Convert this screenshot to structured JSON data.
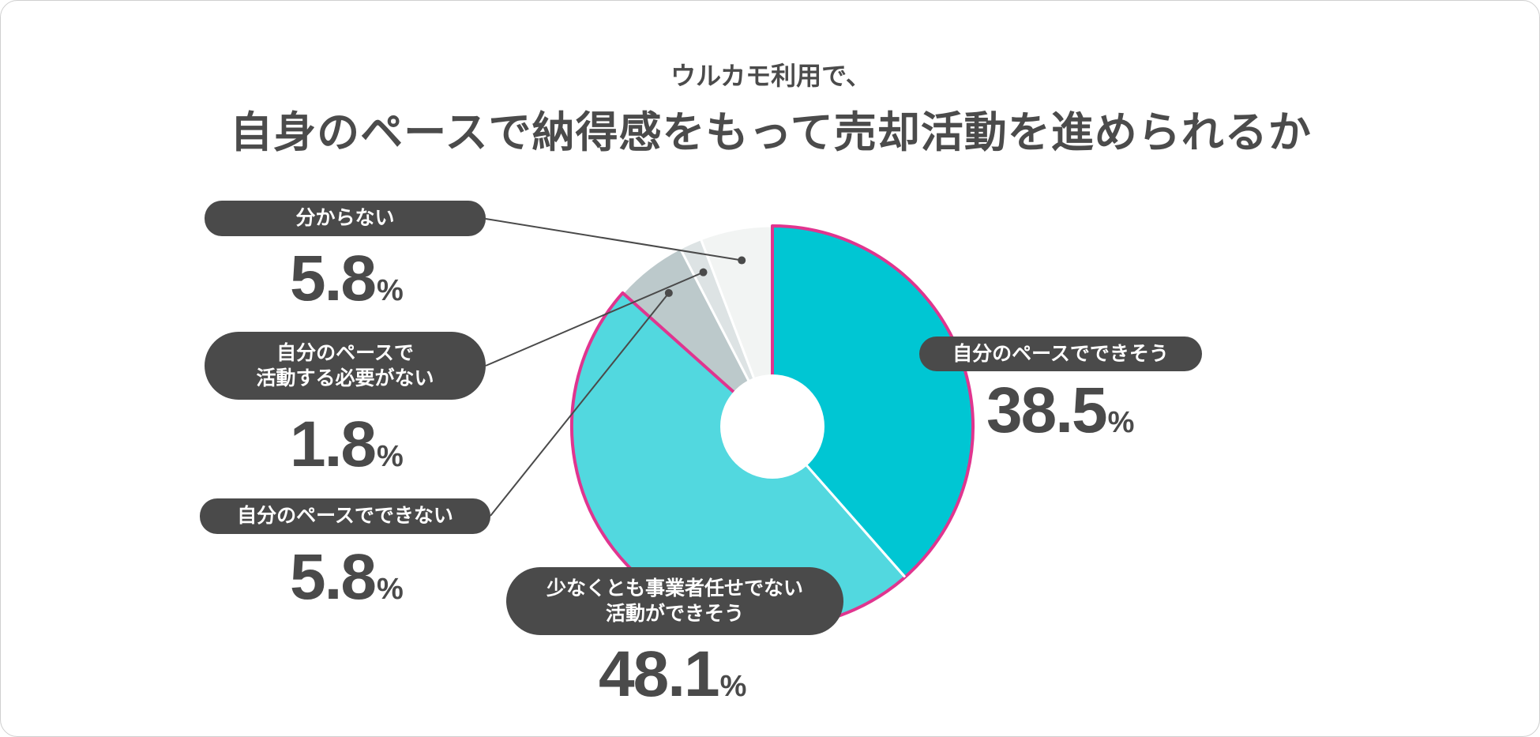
{
  "heading": {
    "subtitle": "ウルカモ利用で、",
    "title": "自身のペースで納得感をもって売却活動を進められるか"
  },
  "chart_data": {
    "type": "pie",
    "subtype": "donut",
    "unit": "%",
    "slices": [
      {
        "label": "自分のペースでできそう",
        "value": 38.5,
        "value_text": "38.5",
        "color": "#00c6d3",
        "highlight": true
      },
      {
        "label": "少なくとも事業者任せでない\n活動ができそう",
        "value": 48.1,
        "value_text": "48.1",
        "color": "#52d8df",
        "highlight": true
      },
      {
        "label": "自分のペースでできない",
        "value": 5.8,
        "value_text": "5.8",
        "color": "#bcc9cb",
        "highlight": false
      },
      {
        "label": "自分のペースで\n活動する必要がない",
        "value": 1.8,
        "value_text": "1.8",
        "color": "#dde3e4",
        "highlight": false
      },
      {
        "label": "分からない",
        "value": 5.8,
        "value_text": "5.8",
        "color": "#f2f4f3",
        "highlight": false
      }
    ],
    "highlight_color": "#e0358f"
  }
}
